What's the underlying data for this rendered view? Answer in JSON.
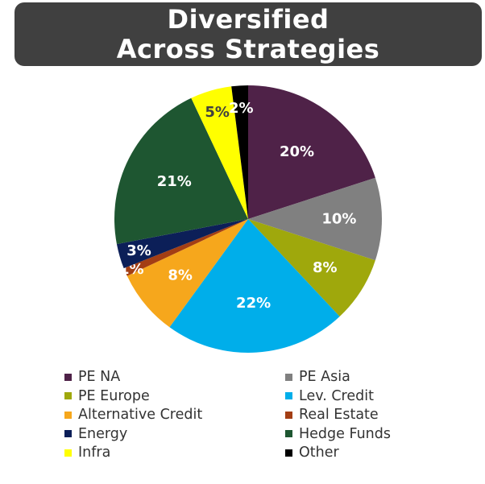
{
  "header": {
    "title": "Diversified Across Strategies"
  },
  "chart_data": {
    "type": "pie",
    "title": "Diversified Across Strategies",
    "slices": [
      {
        "name": "PE NA",
        "value": 20,
        "label": "20%",
        "color": "#4f2248",
        "label_color": "#ffffff"
      },
      {
        "name": "PE Asia",
        "value": 10,
        "label": "10%",
        "color": "#808080",
        "label_color": "#ffffff"
      },
      {
        "name": "PE Europe",
        "value": 8,
        "label": "8%",
        "color": "#9fa80c",
        "label_color": "#ffffff"
      },
      {
        "name": "Lev. Credit",
        "value": 22,
        "label": "22%",
        "color": "#00aeea",
        "label_color": "#ffffff"
      },
      {
        "name": "Alternative Credit",
        "value": 8,
        "label": "8%",
        "color": "#f6a71c",
        "label_color": "#ffffff"
      },
      {
        "name": "Real Estate",
        "value": 1,
        "label": "1%",
        "color": "#a33e14",
        "label_color": "#ffffff"
      },
      {
        "name": "Energy",
        "value": 3,
        "label": "3%",
        "color": "#0c1f58",
        "label_color": "#ffffff"
      },
      {
        "name": "Hedge Funds",
        "value": 21,
        "label": "21%",
        "color": "#1e5631",
        "label_color": "#ffffff"
      },
      {
        "name": "Infra",
        "value": 5,
        "label": "5%",
        "color": "#ffff00",
        "label_color": "#404040"
      },
      {
        "name": "Other",
        "value": 2,
        "label": "2%",
        "color": "#000000",
        "label_color": "#ffffff"
      }
    ],
    "legend": "bottom, two columns"
  }
}
